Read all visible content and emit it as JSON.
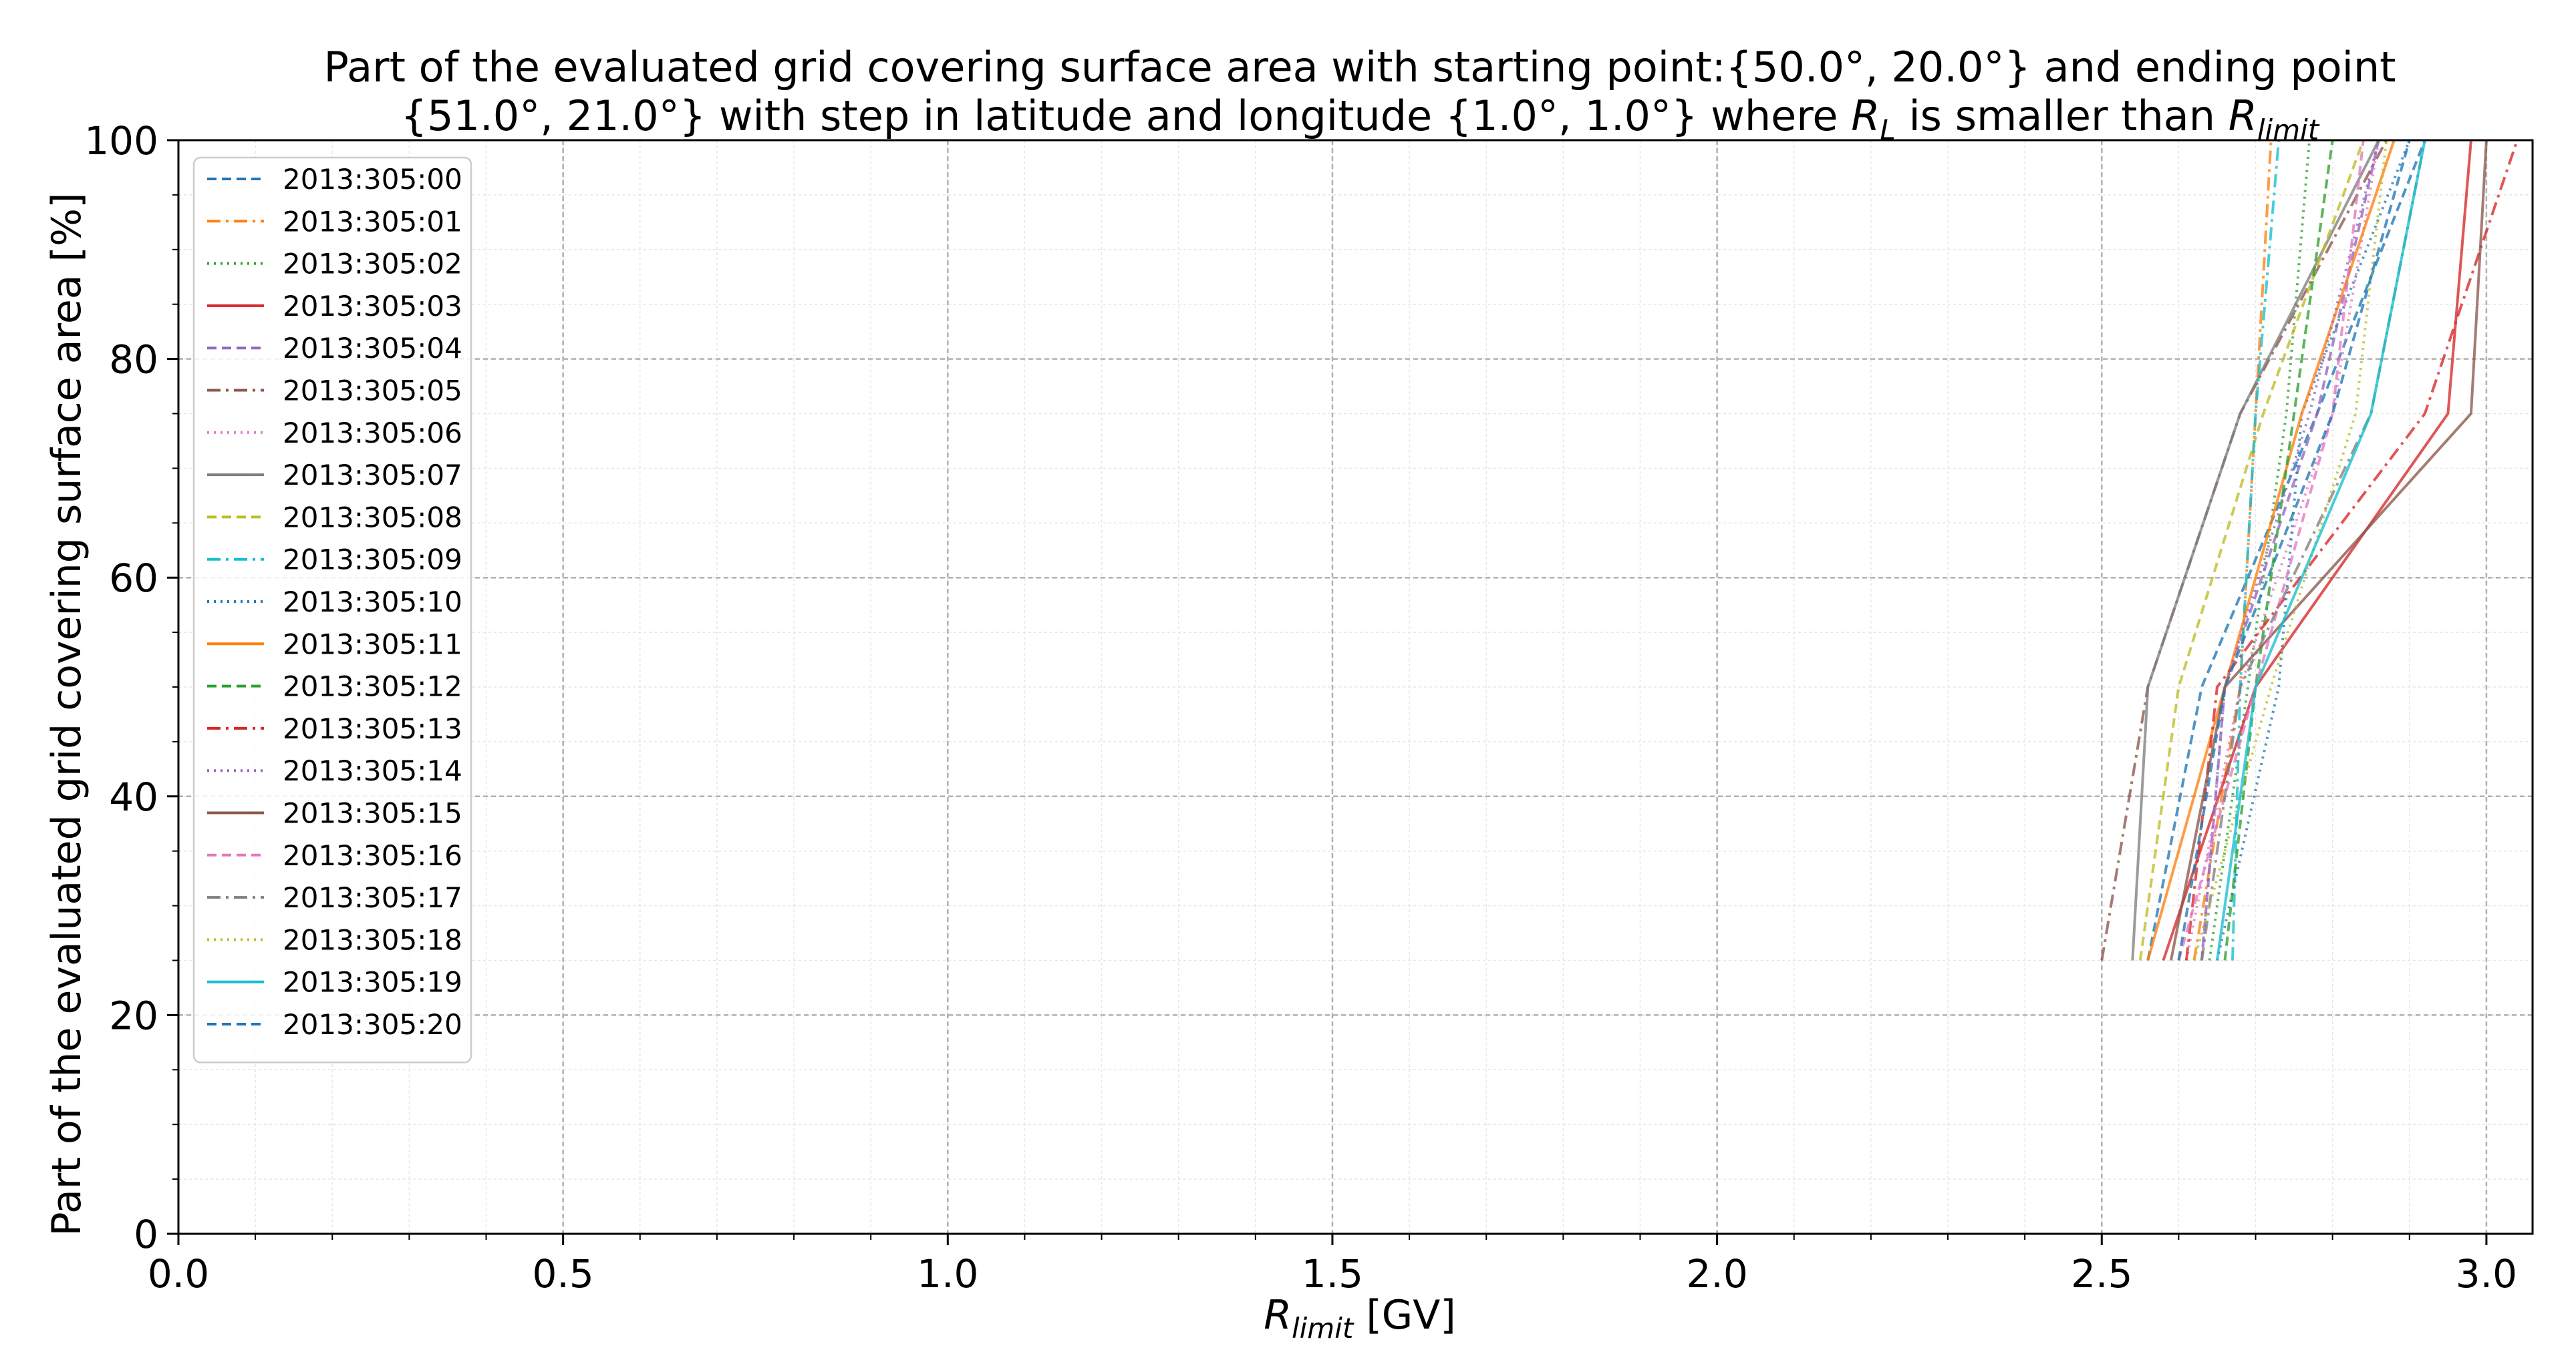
{
  "chart_data": {
    "type": "line",
    "title_line1": "Part of the evaluated grid covering surface area with starting point:{50.0°, 20.0°} and ending point",
    "title_line2_pre": "{51.0°, 21.0°} with step in latitude and longitude {1.0°, 1.0°} where ",
    "title_RL_main": "R",
    "title_RL_sub": "L",
    "title_line2_mid": " is smaller than ",
    "title_Rlimit_main": "R",
    "title_Rlimit_sub": "limit",
    "xlabel_main": "R",
    "xlabel_sub": "limit",
    "xlabel_unit": " [GV]",
    "ylabel": "Part of the evaluated grid covering surface area  [%]",
    "xlim": [
      0.0,
      3.06
    ],
    "ylim": [
      0,
      100
    ],
    "xticks": [
      "0.0",
      "0.5",
      "1.0",
      "1.5",
      "2.0",
      "2.5",
      "3.0"
    ],
    "yticks": [
      "0",
      "20",
      "40",
      "60",
      "80",
      "100"
    ],
    "grid": true,
    "legend_position": "top-left",
    "series": [
      {
        "name": "2013:305:00",
        "color": "#1f77b4",
        "dash": "dashed",
        "x": [
          2.56,
          2.63,
          2.78,
          2.92
        ],
        "y": [
          25,
          50,
          75,
          100
        ]
      },
      {
        "name": "2013:305:01",
        "color": "#ff7f0e",
        "dash": "dashdot",
        "x": [
          2.62,
          2.68,
          2.7,
          2.72
        ],
        "y": [
          25,
          50,
          75,
          100
        ]
      },
      {
        "name": "2013:305:02",
        "color": "#2ca02c",
        "dash": "dotted",
        "x": [
          2.64,
          2.69,
          2.74,
          2.77
        ],
        "y": [
          25,
          50,
          75,
          100
        ]
      },
      {
        "name": "2013:305:03",
        "color": "#d62728",
        "dash": "solid",
        "x": [
          2.58,
          2.7,
          2.95,
          2.98
        ],
        "y": [
          25,
          50,
          75,
          100
        ]
      },
      {
        "name": "2013:305:04",
        "color": "#9467bd",
        "dash": "dashed",
        "x": [
          2.63,
          2.66,
          2.78,
          2.86
        ],
        "y": [
          25,
          50,
          75,
          100
        ]
      },
      {
        "name": "2013:305:05",
        "color": "#8c564b",
        "dash": "dashdot",
        "x": [
          2.5,
          2.56,
          2.68,
          2.87
        ],
        "y": [
          25,
          50,
          75,
          100
        ]
      },
      {
        "name": "2013:305:06",
        "color": "#e377c2",
        "dash": "dotted",
        "x": [
          2.61,
          2.68,
          2.8,
          2.86
        ],
        "y": [
          25,
          50,
          75,
          100
        ]
      },
      {
        "name": "2013:305:07",
        "color": "#7f7f7f",
        "dash": "solid",
        "x": [
          2.54,
          2.56,
          2.68,
          2.86
        ],
        "y": [
          25,
          50,
          75,
          100
        ]
      },
      {
        "name": "2013:305:08",
        "color": "#bcbd22",
        "dash": "dashed",
        "x": [
          2.55,
          2.6,
          2.71,
          2.84
        ],
        "y": [
          25,
          50,
          75,
          100
        ]
      },
      {
        "name": "2013:305:09",
        "color": "#17becf",
        "dash": "dashdot",
        "x": [
          2.67,
          2.68,
          2.7,
          2.73
        ],
        "y": [
          25,
          50,
          75,
          100
        ]
      },
      {
        "name": "2013:305:10",
        "color": "#1f77b4",
        "dash": "dotted",
        "x": [
          2.65,
          2.73,
          2.76,
          2.9
        ],
        "y": [
          25,
          50,
          75,
          100
        ]
      },
      {
        "name": "2013:305:11",
        "color": "#ff7f0e",
        "dash": "solid",
        "x": [
          2.56,
          2.66,
          2.76,
          2.88
        ],
        "y": [
          25,
          50,
          75,
          100
        ]
      },
      {
        "name": "2013:305:12",
        "color": "#2ca02c",
        "dash": "dashed",
        "x": [
          2.66,
          2.7,
          2.75,
          2.8
        ],
        "y": [
          25,
          50,
          75,
          100
        ]
      },
      {
        "name": "2013:305:13",
        "color": "#d62728",
        "dash": "dashdot",
        "x": [
          2.61,
          2.65,
          2.92,
          3.04
        ],
        "y": [
          25,
          50,
          75,
          100
        ]
      },
      {
        "name": "2013:305:14",
        "color": "#9467bd",
        "dash": "dotted",
        "x": [
          2.63,
          2.66,
          2.77,
          2.86
        ],
        "y": [
          25,
          50,
          75,
          100
        ]
      },
      {
        "name": "2013:305:15",
        "color": "#8c564b",
        "dash": "solid",
        "x": [
          2.59,
          2.66,
          2.98,
          3.0
        ],
        "y": [
          25,
          50,
          75,
          100
        ]
      },
      {
        "name": "2013:305:16",
        "color": "#e377c2",
        "dash": "dashed",
        "x": [
          2.6,
          2.7,
          2.8,
          2.84
        ],
        "y": [
          25,
          50,
          75,
          100
        ]
      },
      {
        "name": "2013:305:17",
        "color": "#7f7f7f",
        "dash": "dashdot",
        "x": [
          2.63,
          2.68,
          2.85,
          2.92
        ],
        "y": [
          25,
          50,
          75,
          100
        ]
      },
      {
        "name": "2013:305:18",
        "color": "#bcbd22",
        "dash": "dotted",
        "x": [
          2.62,
          2.72,
          2.83,
          2.87
        ],
        "y": [
          25,
          50,
          75,
          100
        ]
      },
      {
        "name": "2013:305:19",
        "color": "#17becf",
        "dash": "solid",
        "x": [
          2.65,
          2.7,
          2.85,
          2.92
        ],
        "y": [
          25,
          50,
          75,
          100
        ]
      },
      {
        "name": "2013:305:20",
        "color": "#1f77b4",
        "dash": "dashed",
        "x": [
          2.6,
          2.66,
          2.8,
          2.9
        ],
        "y": [
          25,
          50,
          75,
          100
        ]
      }
    ]
  }
}
